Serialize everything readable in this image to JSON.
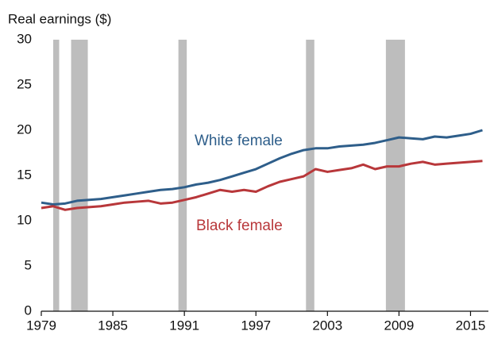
{
  "chart_data": {
    "type": "line",
    "title": "Real earnings ($)",
    "x": [
      1979,
      1980,
      1981,
      1982,
      1983,
      1984,
      1985,
      1986,
      1987,
      1988,
      1989,
      1990,
      1991,
      1992,
      1993,
      1994,
      1995,
      1996,
      1997,
      1998,
      1999,
      2000,
      2001,
      2002,
      2003,
      2004,
      2005,
      2006,
      2007,
      2008,
      2009,
      2010,
      2011,
      2012,
      2013,
      2014,
      2015,
      2016
    ],
    "series": [
      {
        "name": "White female",
        "color": "#2e5e8a",
        "values": [
          12.0,
          11.8,
          11.9,
          12.2,
          12.3,
          12.4,
          12.6,
          12.8,
          13.0,
          13.2,
          13.4,
          13.5,
          13.7,
          14.0,
          14.2,
          14.5,
          14.9,
          15.3,
          15.7,
          16.3,
          16.9,
          17.4,
          17.8,
          18.0,
          18.0,
          18.2,
          18.3,
          18.4,
          18.6,
          18.9,
          19.2,
          19.1,
          19.0,
          19.3,
          19.2,
          19.4,
          19.6,
          20.0
        ]
      },
      {
        "name": "Black female",
        "color": "#b8373a",
        "values": [
          11.4,
          11.6,
          11.2,
          11.4,
          11.5,
          11.6,
          11.8,
          12.0,
          12.1,
          12.2,
          11.9,
          12.0,
          12.3,
          12.6,
          13.0,
          13.4,
          13.2,
          13.4,
          13.2,
          13.8,
          14.3,
          14.6,
          14.9,
          15.7,
          15.4,
          15.6,
          15.8,
          16.2,
          15.7,
          16.0,
          16.0,
          16.3,
          16.5,
          16.2,
          16.3,
          16.4,
          16.5,
          16.6
        ]
      }
    ],
    "shaded_periods": [
      [
        1980.0,
        1980.5
      ],
      [
        1981.5,
        1982.9
      ],
      [
        1990.5,
        1991.2
      ],
      [
        2001.2,
        2001.9
      ],
      [
        2007.9,
        2009.5
      ]
    ],
    "shade_color": "#bdbdbd",
    "xlim": [
      1979,
      2016.5
    ],
    "xticks": [
      1979,
      1985,
      1991,
      1997,
      2003,
      2009,
      2015
    ],
    "ylim": [
      0,
      30
    ],
    "yticks": [
      0,
      5,
      10,
      15,
      20,
      25,
      30
    ]
  }
}
